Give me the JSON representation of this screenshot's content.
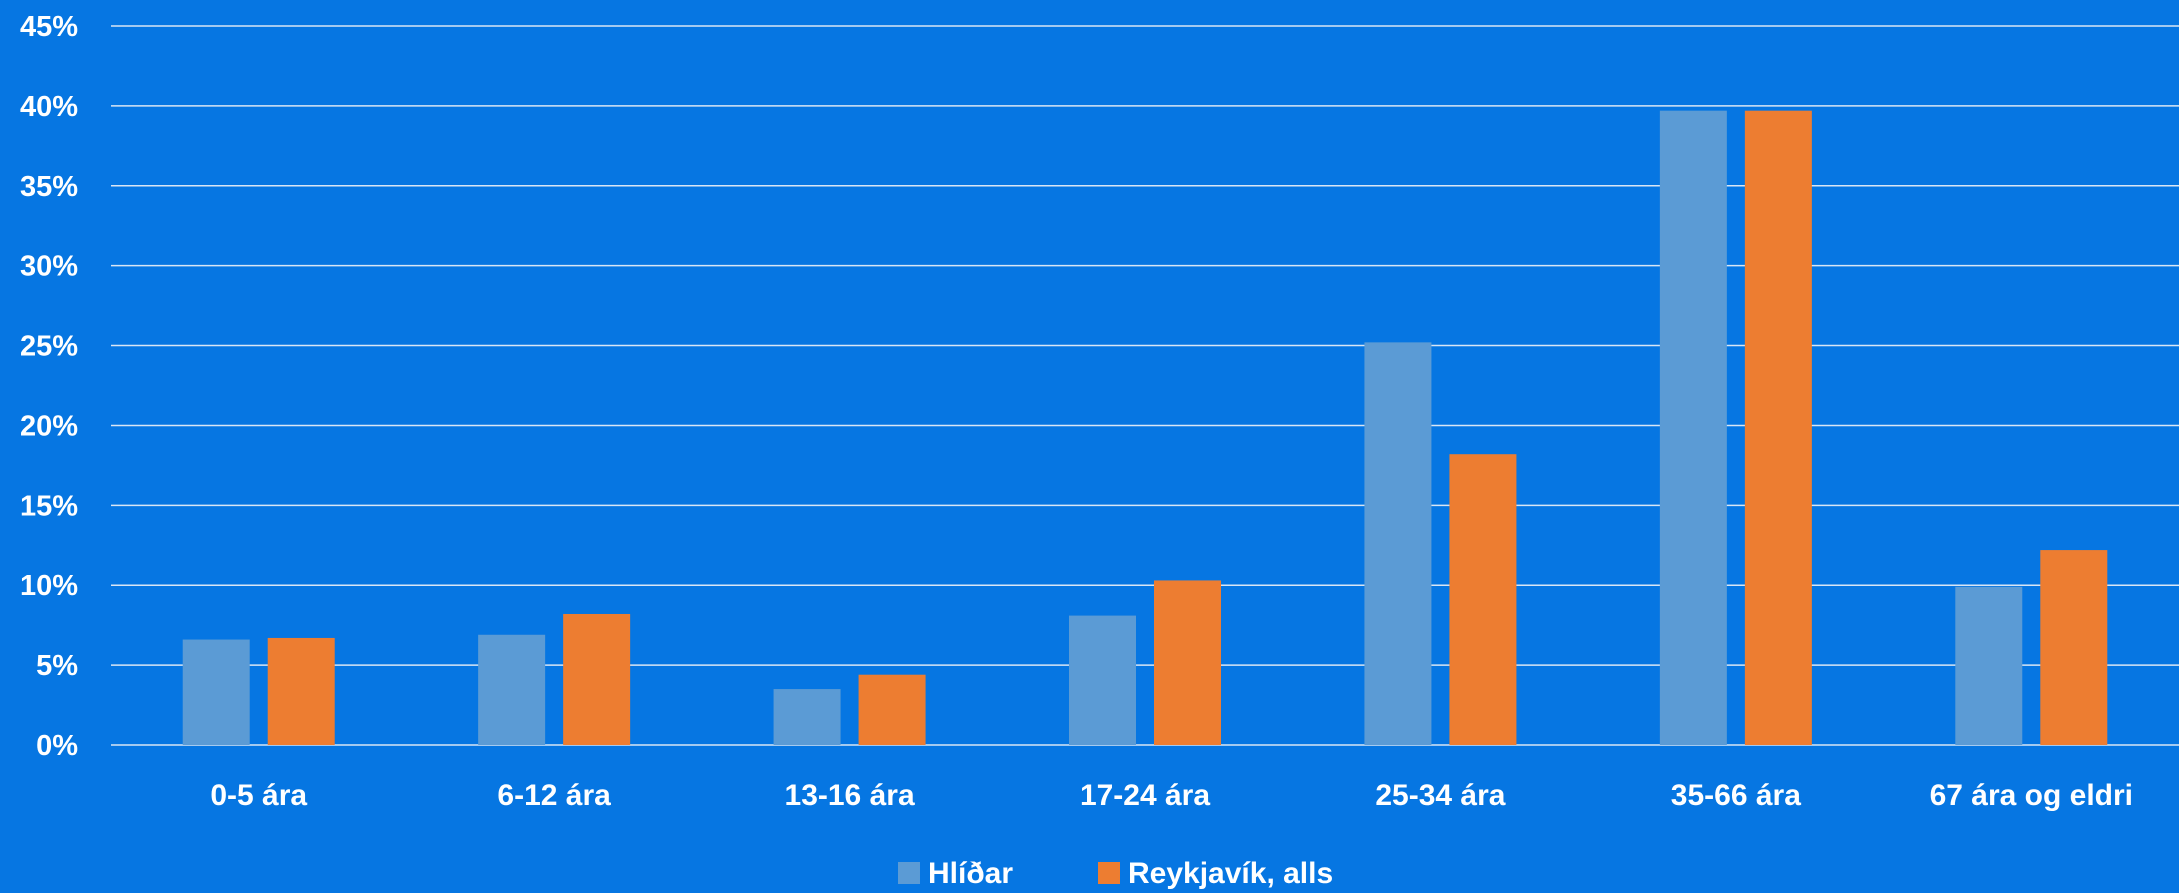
{
  "colors": {
    "background": "#0676E2",
    "gridline": "#D9E6F5",
    "text": "#FFFFFF"
  },
  "chart_data": {
    "type": "bar",
    "title": "",
    "xlabel": "",
    "ylabel": "",
    "categories": [
      "0-5 ára",
      "6-12 ára",
      "13-16 ára",
      "17-24 ára",
      "25-34 ára",
      "35-66 ára",
      "67 ára og eldri"
    ],
    "series": [
      {
        "name": "Hlíðar",
        "color": "#5B9BD5",
        "values": [
          6.6,
          6.9,
          3.5,
          8.1,
          25.2,
          39.7,
          9.9
        ]
      },
      {
        "name": "Reykjavík, alls",
        "color": "#ED7D31",
        "values": [
          6.7,
          8.2,
          4.4,
          10.3,
          18.2,
          39.7,
          12.2
        ]
      }
    ],
    "ylim": [
      0,
      45
    ],
    "yticks": [
      0,
      5,
      10,
      15,
      20,
      25,
      30,
      35,
      40,
      45
    ],
    "ytick_labels": [
      "0%",
      "5%",
      "10%",
      "15%",
      "20%",
      "25%",
      "30%",
      "35%",
      "40%",
      "45%"
    ],
    "grid": true,
    "legend_position": "bottom"
  }
}
